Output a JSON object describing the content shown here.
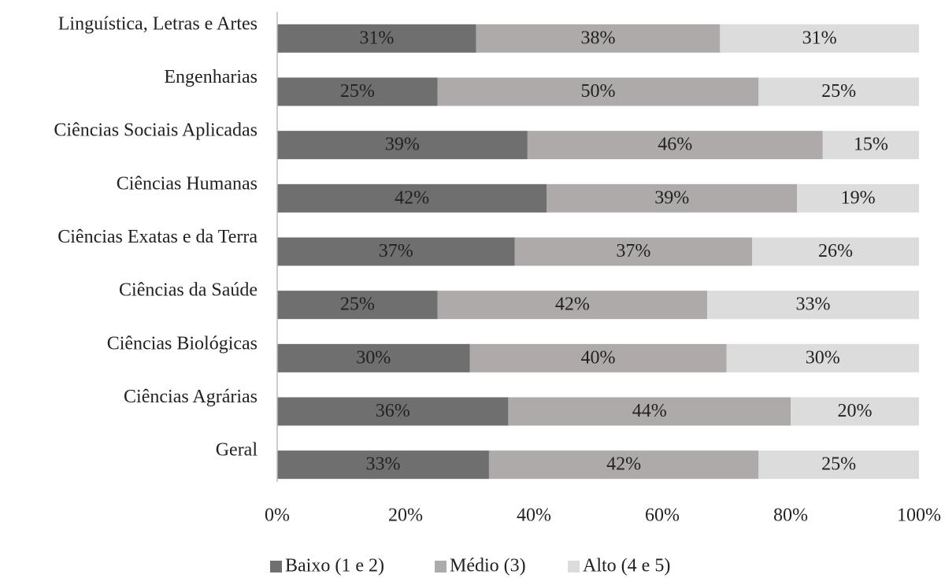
{
  "chart_data": {
    "type": "stacked_barh",
    "categories": [
      "Linguística, Letras e Artes",
      "Engenharias",
      "Ciências Sociais Aplicadas",
      "Ciências Humanas",
      "Ciências Exatas e da Terra",
      "Ciências da Saúde",
      "Ciências Biológicas",
      "Ciências Agrárias",
      "Geral"
    ],
    "series": [
      {
        "name": "Baixo (1 e 2)",
        "color": "#6f6f6f",
        "values": [
          31,
          25,
          39,
          42,
          37,
          25,
          30,
          36,
          33
        ],
        "value_labels": [
          "31%",
          "25%",
          "39%",
          "42%",
          "37%",
          "25%",
          "30%",
          "36%",
          "33%"
        ]
      },
      {
        "name": "Médio (3)",
        "color": "#adaaa9",
        "values": [
          38,
          50,
          46,
          39,
          37,
          42,
          40,
          44,
          42
        ],
        "value_labels": [
          "38%",
          "50%",
          "46%",
          "39%",
          "37%",
          "42%",
          "40%",
          "44%",
          "42%"
        ]
      },
      {
        "name": "Alto (4 e 5)",
        "color": "#dcdcdc",
        "values": [
          31,
          25,
          15,
          19,
          26,
          33,
          30,
          20,
          25
        ],
        "value_labels": [
          "31%",
          "25%",
          "15%",
          "19%",
          "26%",
          "33%",
          "30%",
          "20%",
          "25%"
        ]
      }
    ],
    "xlim": [
      0,
      100
    ],
    "xticks": [
      {
        "value": 0,
        "label": "0%"
      },
      {
        "value": 20,
        "label": "20%"
      },
      {
        "value": 40,
        "label": "40%"
      },
      {
        "value": 60,
        "label": "60%"
      },
      {
        "value": 80,
        "label": "80%"
      },
      {
        "value": 100,
        "label": "100%"
      }
    ],
    "grid": false,
    "legend": "bottom"
  }
}
